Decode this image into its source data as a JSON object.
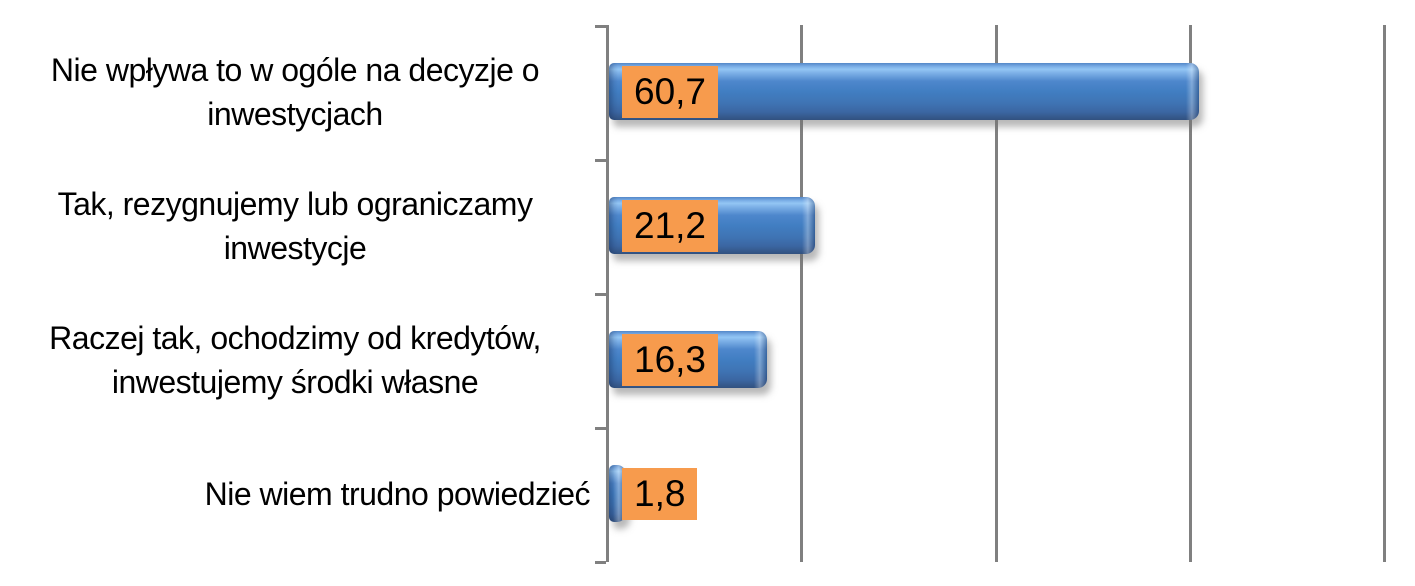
{
  "chart_data": {
    "type": "bar",
    "orientation": "horizontal",
    "title": "",
    "xlabel": "",
    "ylabel": "",
    "categories": [
      "Nie wpływa to w ogóle na decyzje o inwestycjach",
      "Tak, rezygnujemy lub ograniczamy inwestycje",
      "Raczej tak, ochodzimy od kredytów, inwestujemy środki własne",
      "Nie wiem trudno powiedzieć"
    ],
    "values": [
      60.7,
      21.2,
      16.3,
      1.8
    ],
    "value_labels": [
      "60,7",
      "21,2",
      "16,3",
      "1,8"
    ],
    "xlim": [
      0,
      80
    ],
    "gridline_interval": 20,
    "grid": "vertical-lines-on",
    "legend": "none",
    "style": {
      "bar_color": "#4381c6",
      "bar_highlight": "#93c6f4",
      "bar_shadow_edge": "#31517f",
      "badge_color": "#f79b4d",
      "badge_text_color": "#000000",
      "grid_color": "#808080",
      "label_text_color": "#000000",
      "background": "#ffffff"
    }
  }
}
